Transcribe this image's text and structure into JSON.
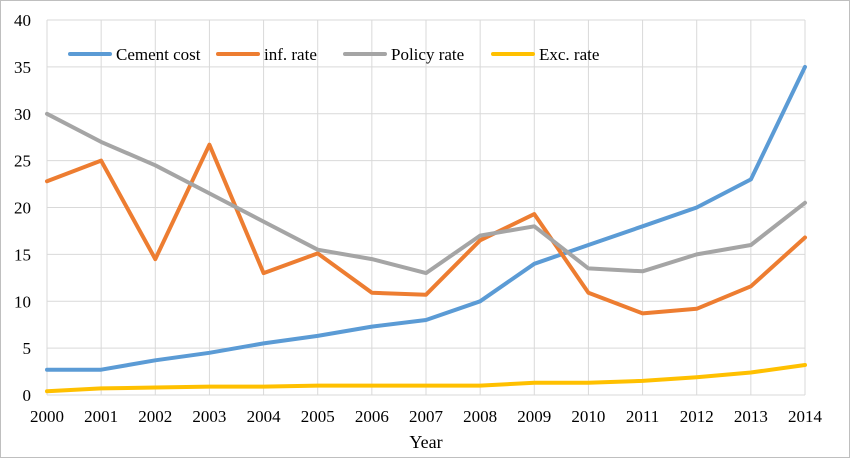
{
  "chart_data": {
    "type": "line",
    "title": "",
    "xlabel": "Year",
    "ylabel": "",
    "categories": [
      "2000",
      "2001",
      "2002",
      "2003",
      "2004",
      "2005",
      "2006",
      "2007",
      "2008",
      "2009",
      "2010",
      "2011",
      "2012",
      "2013",
      "2014"
    ],
    "ylim": [
      0,
      40
    ],
    "yticks": [
      "0",
      "5",
      "10",
      "15",
      "20",
      "25",
      "30",
      "35",
      "40"
    ],
    "grid": true,
    "legend_position": "top-left",
    "series": [
      {
        "name": "Cement cost",
        "color": "#5b9bd5",
        "values": [
          2.7,
          2.7,
          3.7,
          4.5,
          5.5,
          6.3,
          7.3,
          8.0,
          10.0,
          14.0,
          16.0,
          18.0,
          20.0,
          23.0,
          35.0
        ]
      },
      {
        "name": "inf. rate",
        "color": "#ed7d31",
        "values": [
          22.8,
          25.0,
          14.5,
          26.7,
          13.0,
          15.1,
          10.9,
          10.7,
          16.5,
          19.3,
          10.9,
          8.7,
          9.2,
          11.6,
          16.8
        ]
      },
      {
        "name": "Policy rate",
        "color": "#a5a5a5",
        "values": [
          30.0,
          27.0,
          24.5,
          21.5,
          18.5,
          15.5,
          14.5,
          13.0,
          17.0,
          18.0,
          13.5,
          13.2,
          15.0,
          16.0,
          20.5
        ]
      },
      {
        "name": "Exc. rate",
        "color": "#ffc000",
        "values": [
          0.4,
          0.7,
          0.8,
          0.9,
          0.9,
          1.0,
          1.0,
          1.0,
          1.0,
          1.3,
          1.3,
          1.5,
          1.9,
          2.4,
          3.2
        ]
      }
    ]
  }
}
